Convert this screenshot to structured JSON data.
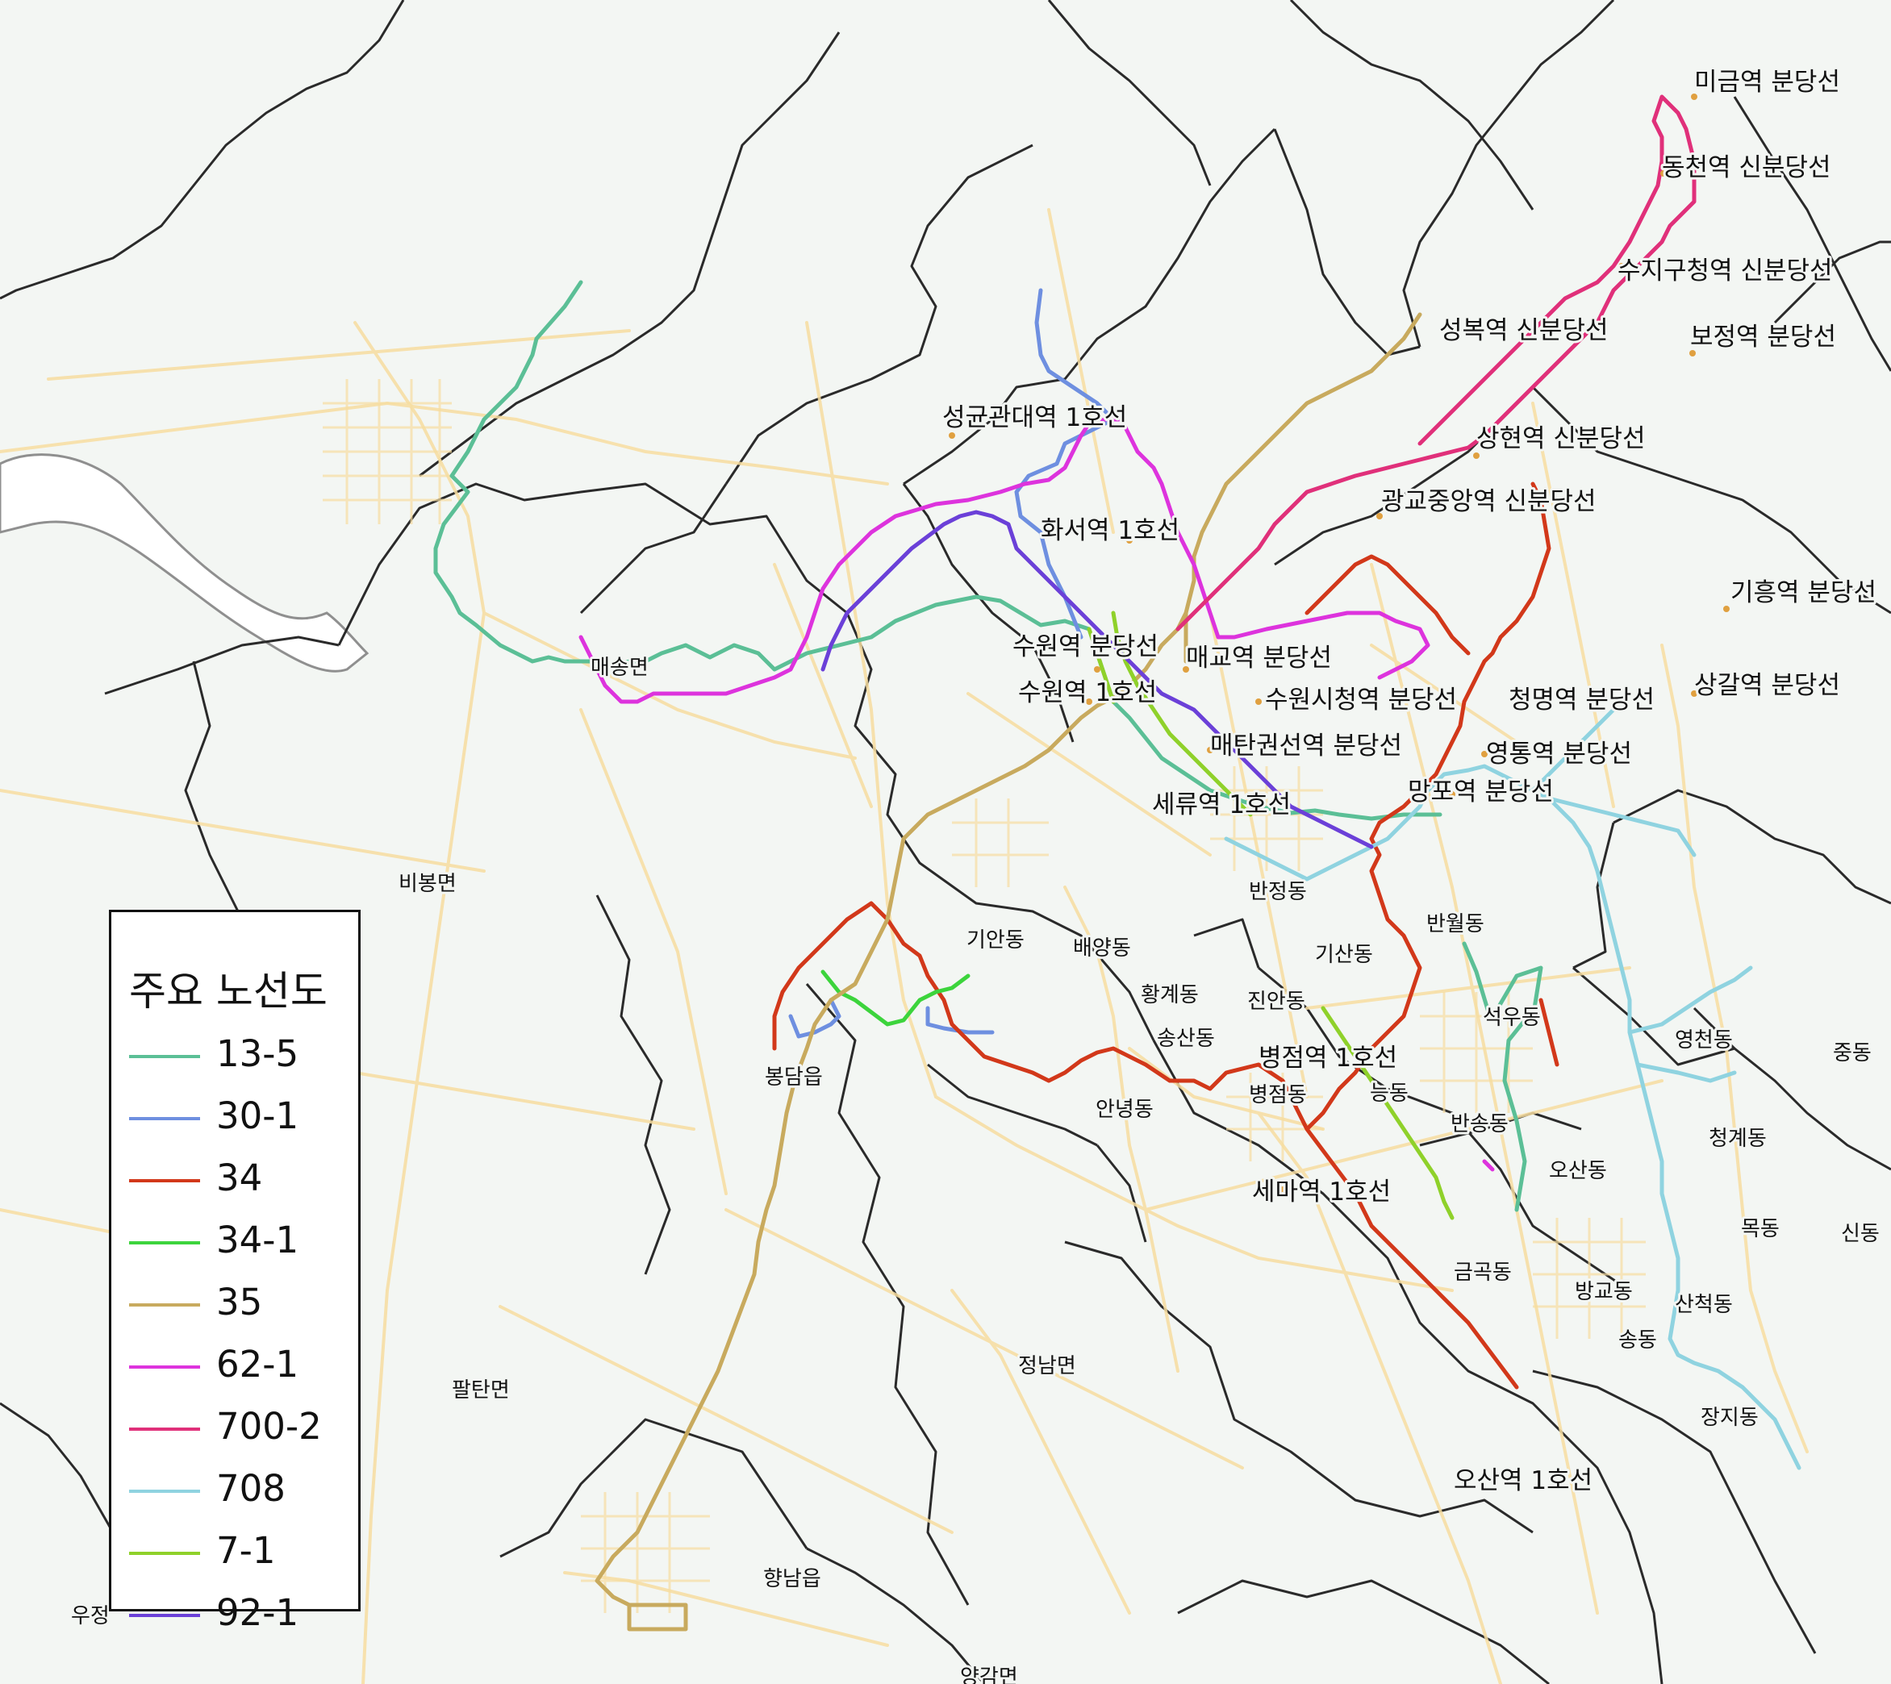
{
  "legend": {
    "title": "주요 노선도",
    "items": [
      {
        "label": "13-5",
        "color": "#5bbf96"
      },
      {
        "label": "30-1",
        "color": "#6e8fe0"
      },
      {
        "label": "34",
        "color": "#d2381a"
      },
      {
        "label": "34-1",
        "color": "#3cd43c"
      },
      {
        "label": "35",
        "color": "#c8aa5e"
      },
      {
        "label": "62-1",
        "color": "#dd33dd"
      },
      {
        "label": "700-2",
        "color": "#e0307a"
      },
      {
        "label": "708",
        "color": "#8fd3e0"
      },
      {
        "label": "7-1",
        "color": "#8fd12a"
      },
      {
        "label": "92-1",
        "color": "#6b40d8"
      }
    ]
  },
  "stations": [
    {
      "name": "미금역 분당선"
    },
    {
      "name": "동천역 신분당선"
    },
    {
      "name": "수지구청역 신분당선"
    },
    {
      "name": "성복역 신분당선"
    },
    {
      "name": "보정역 분당선"
    },
    {
      "name": "상현역 신분당선"
    },
    {
      "name": "광교중앙역 신분당선"
    },
    {
      "name": "기흥역 분당선"
    },
    {
      "name": "상갈역 분당선"
    },
    {
      "name": "성균관대역 1호선"
    },
    {
      "name": "화서역 1호선"
    },
    {
      "name": "수원역 분당선"
    },
    {
      "name": "매교역 분당선"
    },
    {
      "name": "수원역 1호선"
    },
    {
      "name": "수원시청역 분당선"
    },
    {
      "name": "청명역 분당선"
    },
    {
      "name": "매탄권선역 분당선"
    },
    {
      "name": "영통역 분당선"
    },
    {
      "name": "망포역 분당선"
    },
    {
      "name": "세류역 1호선"
    },
    {
      "name": "병점역 1호선"
    },
    {
      "name": "세마역 1호선"
    },
    {
      "name": "오산역 1호선"
    }
  ],
  "places": [
    {
      "name": "매송면"
    },
    {
      "name": "비봉면"
    },
    {
      "name": "반정동"
    },
    {
      "name": "반월동"
    },
    {
      "name": "기안동"
    },
    {
      "name": "배양동"
    },
    {
      "name": "기산동"
    },
    {
      "name": "황계동"
    },
    {
      "name": "진안동"
    },
    {
      "name": "석우동"
    },
    {
      "name": "송산동"
    },
    {
      "name": "영천동"
    },
    {
      "name": "중동"
    },
    {
      "name": "봉담읍"
    },
    {
      "name": "병점동"
    },
    {
      "name": "능동"
    },
    {
      "name": "안녕동"
    },
    {
      "name": "반송동"
    },
    {
      "name": "청계동"
    },
    {
      "name": "오산동"
    },
    {
      "name": "목동"
    },
    {
      "name": "신동"
    },
    {
      "name": "금곡동"
    },
    {
      "name": "방교동"
    },
    {
      "name": "산척동"
    },
    {
      "name": "정남면"
    },
    {
      "name": "송동"
    },
    {
      "name": "팔탄면"
    },
    {
      "name": "장지동"
    },
    {
      "name": "향남읍"
    },
    {
      "name": "우정"
    },
    {
      "name": "양감면"
    }
  ]
}
